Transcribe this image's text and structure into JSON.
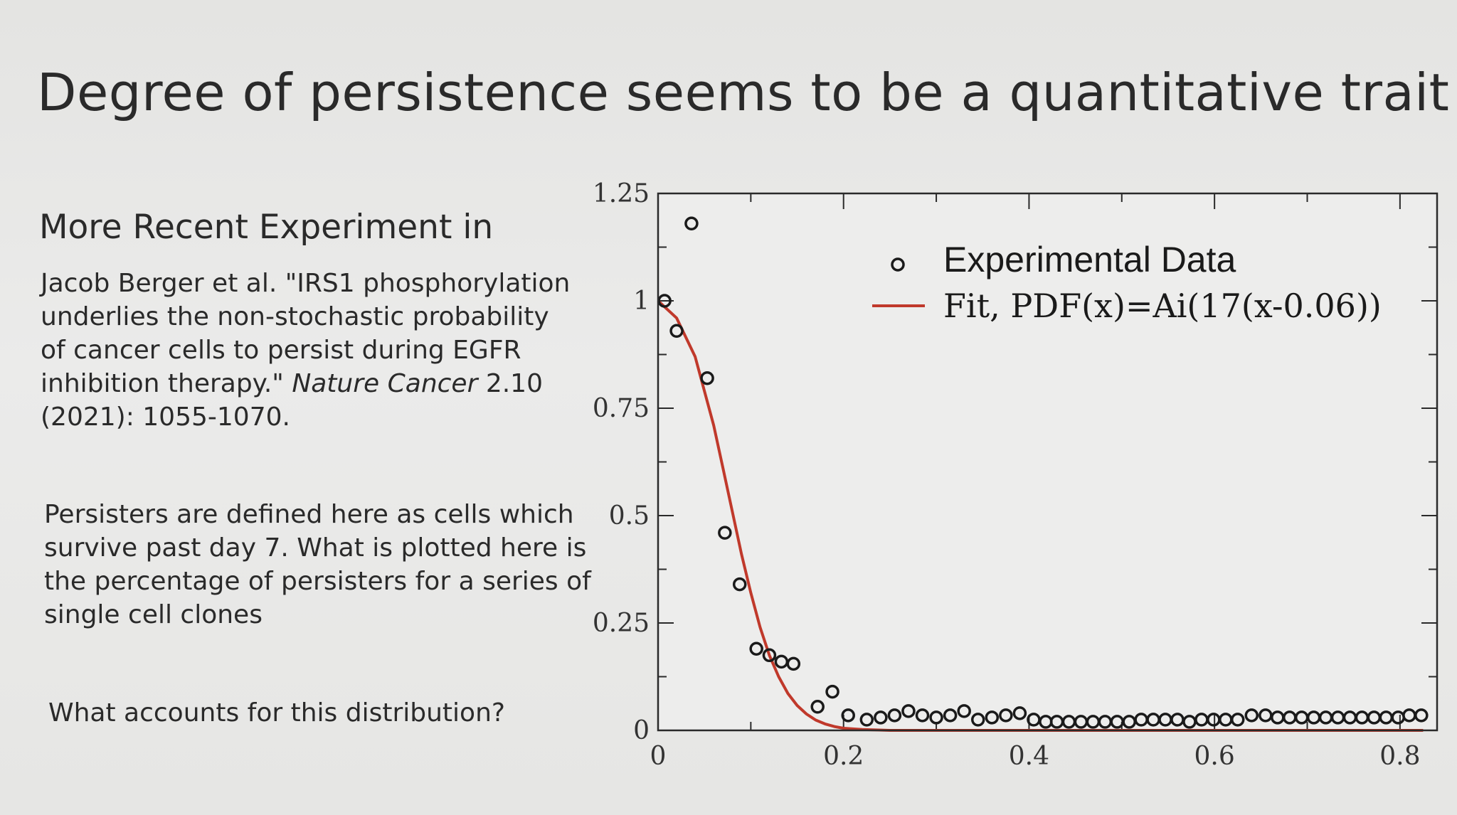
{
  "slide": {
    "title": "Degree of persistence seems to be a quantitative trait",
    "subheading": "More Recent Experiment in",
    "citation": {
      "text_before": "Jacob Berger et al. \"IRS1 phosphorylation underlies the non-stochastic probability of cancer cells to persist during EGFR inhibition therapy.\" ",
      "journal": "Nature Cancer",
      "text_after": " 2.10 (2021): 1055-1070."
    },
    "definition": "Persisters are defined here as cells which survive past day 7. What is plotted here is the percentage of persisters for a series of single cell clones",
    "question": "What accounts for this distribution?"
  },
  "chart_data": {
    "type": "scatter",
    "title": "",
    "xlabel": "",
    "ylabel": "",
    "xlim": [
      0,
      0.84
    ],
    "ylim": [
      0,
      1.25
    ],
    "x_ticks": [
      0,
      0.2,
      0.4,
      0.6,
      0.8
    ],
    "x_tick_labels": [
      "0",
      "0.2",
      "0.4",
      "0.6",
      "0.8"
    ],
    "y_ticks": [
      0,
      0.25,
      0.5,
      0.75,
      1,
      1.25
    ],
    "y_tick_labels": [
      "0",
      "0.25",
      "0.5",
      "0.75",
      "1",
      "1.25"
    ],
    "grid": false,
    "legend_position": "top-right",
    "series": [
      {
        "name": "Experimental Data",
        "kind": "markers",
        "marker": "open-circle",
        "color": "#1a1a1a",
        "points": [
          [
            0.007,
            1.0
          ],
          [
            0.02,
            0.93
          ],
          [
            0.036,
            1.18
          ],
          [
            0.053,
            0.82
          ],
          [
            0.072,
            0.46
          ],
          [
            0.088,
            0.34
          ],
          [
            0.106,
            0.19
          ],
          [
            0.12,
            0.175
          ],
          [
            0.133,
            0.16
          ],
          [
            0.146,
            0.155
          ],
          [
            0.172,
            0.055
          ],
          [
            0.188,
            0.09
          ],
          [
            0.205,
            0.035
          ],
          [
            0.225,
            0.025
          ],
          [
            0.24,
            0.03
          ],
          [
            0.255,
            0.035
          ],
          [
            0.27,
            0.045
          ],
          [
            0.285,
            0.035
          ],
          [
            0.3,
            0.03
          ],
          [
            0.315,
            0.035
          ],
          [
            0.33,
            0.045
          ],
          [
            0.345,
            0.025
          ],
          [
            0.36,
            0.03
          ],
          [
            0.375,
            0.035
          ],
          [
            0.39,
            0.04
          ],
          [
            0.405,
            0.025
          ],
          [
            0.418,
            0.02
          ],
          [
            0.43,
            0.02
          ],
          [
            0.443,
            0.02
          ],
          [
            0.456,
            0.02
          ],
          [
            0.469,
            0.02
          ],
          [
            0.482,
            0.02
          ],
          [
            0.495,
            0.02
          ],
          [
            0.508,
            0.02
          ],
          [
            0.521,
            0.025
          ],
          [
            0.534,
            0.025
          ],
          [
            0.547,
            0.025
          ],
          [
            0.56,
            0.025
          ],
          [
            0.573,
            0.02
          ],
          [
            0.586,
            0.025
          ],
          [
            0.599,
            0.025
          ],
          [
            0.612,
            0.025
          ],
          [
            0.625,
            0.025
          ],
          [
            0.64,
            0.035
          ],
          [
            0.655,
            0.035
          ],
          [
            0.668,
            0.03
          ],
          [
            0.681,
            0.03
          ],
          [
            0.694,
            0.03
          ],
          [
            0.707,
            0.03
          ],
          [
            0.72,
            0.03
          ],
          [
            0.733,
            0.03
          ],
          [
            0.746,
            0.03
          ],
          [
            0.759,
            0.03
          ],
          [
            0.772,
            0.03
          ],
          [
            0.785,
            0.03
          ],
          [
            0.798,
            0.03
          ],
          [
            0.81,
            0.035
          ],
          [
            0.823,
            0.035
          ]
        ]
      },
      {
        "name": "Fit, PDF(x)=Ai(17(x-0.06))",
        "kind": "line",
        "color": "#c0392b",
        "points": [
          [
            0.0,
            1.0
          ],
          [
            0.02,
            0.96
          ],
          [
            0.04,
            0.87
          ],
          [
            0.06,
            0.71
          ],
          [
            0.07,
            0.61
          ],
          [
            0.08,
            0.51
          ],
          [
            0.09,
            0.41
          ],
          [
            0.1,
            0.32
          ],
          [
            0.11,
            0.24
          ],
          [
            0.12,
            0.175
          ],
          [
            0.13,
            0.125
          ],
          [
            0.14,
            0.086
          ],
          [
            0.15,
            0.058
          ],
          [
            0.16,
            0.038
          ],
          [
            0.17,
            0.024
          ],
          [
            0.18,
            0.015
          ],
          [
            0.19,
            0.009
          ],
          [
            0.2,
            0.005
          ],
          [
            0.22,
            0.002
          ],
          [
            0.25,
            0.0
          ],
          [
            0.3,
            0.0
          ],
          [
            0.4,
            0.0
          ],
          [
            0.6,
            0.0
          ],
          [
            0.8,
            0.0
          ],
          [
            0.825,
            0.0
          ]
        ]
      }
    ]
  }
}
